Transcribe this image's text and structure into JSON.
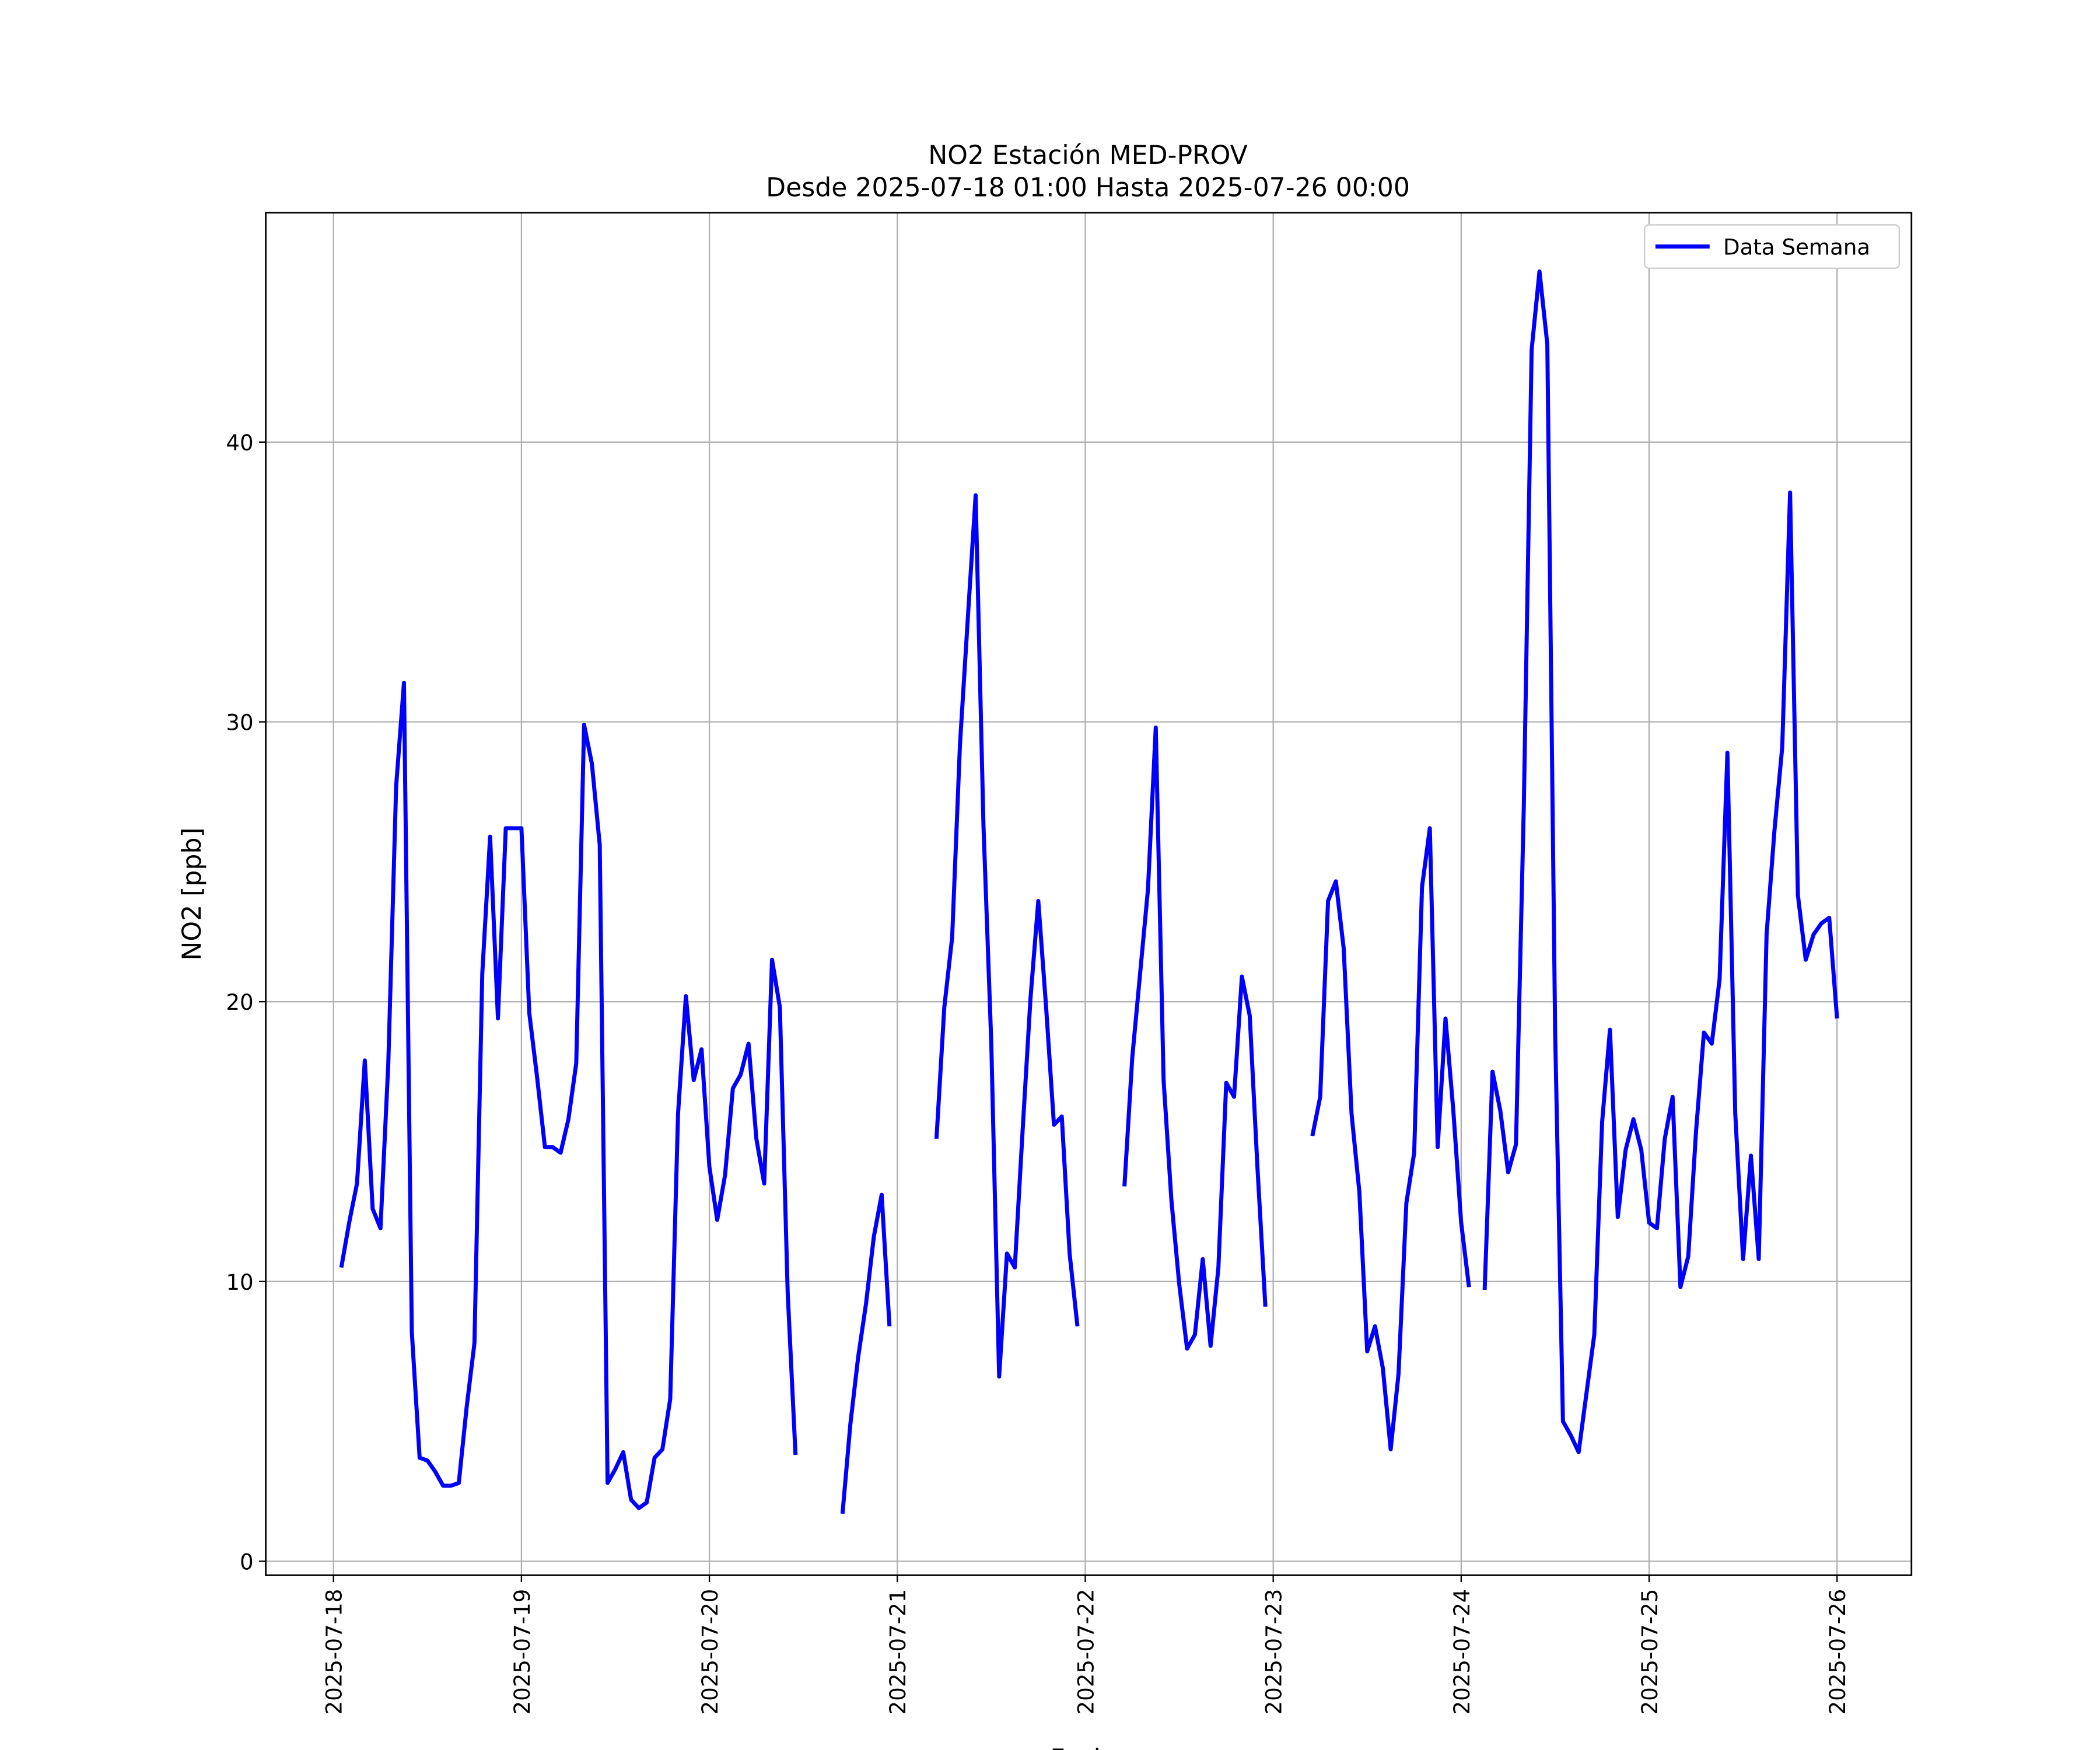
{
  "chart_data": {
    "type": "line",
    "title": "NO2 Estación MED-PROV",
    "subtitle": "Desde 2025-07-18 01:00 Hasta 2025-07-26 00:00",
    "xlabel": "Fecha",
    "ylabel": "NO2 [ppb]",
    "x": [
      "2025-07-18 01:00",
      "2025-07-18 02:00",
      "2025-07-18 03:00",
      "2025-07-18 04:00",
      "2025-07-18 05:00",
      "2025-07-18 06:00",
      "2025-07-18 07:00",
      "2025-07-18 08:00",
      "2025-07-18 09:00",
      "2025-07-18 10:00",
      "2025-07-18 11:00",
      "2025-07-18 12:00",
      "2025-07-18 13:00",
      "2025-07-18 14:00",
      "2025-07-18 15:00",
      "2025-07-18 16:00",
      "2025-07-18 17:00",
      "2025-07-18 18:00",
      "2025-07-18 19:00",
      "2025-07-18 20:00",
      "2025-07-18 21:00",
      "2025-07-18 22:00",
      "2025-07-18 23:00",
      "2025-07-19 00:00",
      "2025-07-19 01:00",
      "2025-07-19 02:00",
      "2025-07-19 03:00",
      "2025-07-19 04:00",
      "2025-07-19 05:00",
      "2025-07-19 06:00",
      "2025-07-19 07:00",
      "2025-07-19 08:00",
      "2025-07-19 09:00",
      "2025-07-19 10:00",
      "2025-07-19 11:00",
      "2025-07-19 12:00",
      "2025-07-19 13:00",
      "2025-07-19 14:00",
      "2025-07-19 15:00",
      "2025-07-19 16:00",
      "2025-07-19 17:00",
      "2025-07-19 18:00",
      "2025-07-19 19:00",
      "2025-07-19 20:00",
      "2025-07-19 21:00",
      "2025-07-19 22:00",
      "2025-07-19 23:00",
      "2025-07-20 00:00",
      "2025-07-20 01:00",
      "2025-07-20 02:00",
      "2025-07-20 03:00",
      "2025-07-20 04:00",
      "2025-07-20 05:00",
      "2025-07-20 06:00",
      "2025-07-20 07:00",
      "2025-07-20 08:00",
      "2025-07-20 09:00",
      "2025-07-20 10:00",
      "2025-07-20 11:00",
      "2025-07-20 12:00",
      "2025-07-20 13:00",
      "2025-07-20 14:00",
      "2025-07-20 15:00",
      "2025-07-20 16:00",
      "2025-07-20 17:00",
      "2025-07-20 18:00",
      "2025-07-20 19:00",
      "2025-07-20 20:00",
      "2025-07-20 21:00",
      "2025-07-20 22:00",
      "2025-07-20 23:00",
      "2025-07-21 00:00",
      "2025-07-21 01:00",
      "2025-07-21 02:00",
      "2025-07-21 03:00",
      "2025-07-21 04:00",
      "2025-07-21 05:00",
      "2025-07-21 06:00",
      "2025-07-21 07:00",
      "2025-07-21 08:00",
      "2025-07-21 09:00",
      "2025-07-21 10:00",
      "2025-07-21 11:00",
      "2025-07-21 12:00",
      "2025-07-21 13:00",
      "2025-07-21 14:00",
      "2025-07-21 15:00",
      "2025-07-21 16:00",
      "2025-07-21 17:00",
      "2025-07-21 18:00",
      "2025-07-21 19:00",
      "2025-07-21 20:00",
      "2025-07-21 21:00",
      "2025-07-21 22:00",
      "2025-07-21 23:00",
      "2025-07-22 00:00",
      "2025-07-22 01:00",
      "2025-07-22 02:00",
      "2025-07-22 03:00",
      "2025-07-22 04:00",
      "2025-07-22 05:00",
      "2025-07-22 06:00",
      "2025-07-22 07:00",
      "2025-07-22 08:00",
      "2025-07-22 09:00",
      "2025-07-22 10:00",
      "2025-07-22 11:00",
      "2025-07-22 12:00",
      "2025-07-22 13:00",
      "2025-07-22 14:00",
      "2025-07-22 15:00",
      "2025-07-22 16:00",
      "2025-07-22 17:00",
      "2025-07-22 18:00",
      "2025-07-22 19:00",
      "2025-07-22 20:00",
      "2025-07-22 21:00",
      "2025-07-22 22:00",
      "2025-07-22 23:00",
      "2025-07-23 00:00",
      "2025-07-23 01:00",
      "2025-07-23 02:00",
      "2025-07-23 03:00",
      "2025-07-23 04:00",
      "2025-07-23 05:00",
      "2025-07-23 06:00",
      "2025-07-23 07:00",
      "2025-07-23 08:00",
      "2025-07-23 09:00",
      "2025-07-23 10:00",
      "2025-07-23 11:00",
      "2025-07-23 12:00",
      "2025-07-23 13:00",
      "2025-07-23 14:00",
      "2025-07-23 15:00",
      "2025-07-23 16:00",
      "2025-07-23 17:00",
      "2025-07-23 18:00",
      "2025-07-23 19:00",
      "2025-07-23 20:00",
      "2025-07-23 21:00",
      "2025-07-23 22:00",
      "2025-07-23 23:00",
      "2025-07-24 00:00",
      "2025-07-24 01:00",
      "2025-07-24 02:00",
      "2025-07-24 03:00",
      "2025-07-24 04:00",
      "2025-07-24 05:00",
      "2025-07-24 06:00",
      "2025-07-24 07:00",
      "2025-07-24 08:00",
      "2025-07-24 09:00",
      "2025-07-24 10:00",
      "2025-07-24 11:00",
      "2025-07-24 12:00",
      "2025-07-24 13:00",
      "2025-07-24 14:00",
      "2025-07-24 15:00",
      "2025-07-24 16:00",
      "2025-07-24 17:00",
      "2025-07-24 18:00",
      "2025-07-24 19:00",
      "2025-07-24 20:00",
      "2025-07-24 21:00",
      "2025-07-24 22:00",
      "2025-07-24 23:00",
      "2025-07-25 00:00",
      "2025-07-25 01:00",
      "2025-07-25 02:00",
      "2025-07-25 03:00",
      "2025-07-25 04:00",
      "2025-07-25 05:00",
      "2025-07-25 06:00",
      "2025-07-25 07:00",
      "2025-07-25 08:00",
      "2025-07-25 09:00",
      "2025-07-25 10:00",
      "2025-07-25 11:00",
      "2025-07-25 12:00",
      "2025-07-25 13:00",
      "2025-07-25 14:00",
      "2025-07-25 15:00",
      "2025-07-25 16:00",
      "2025-07-25 17:00",
      "2025-07-25 18:00",
      "2025-07-25 19:00",
      "2025-07-25 20:00",
      "2025-07-25 21:00",
      "2025-07-25 22:00",
      "2025-07-25 23:00",
      "2025-07-26 00:00"
    ],
    "series": [
      {
        "name": "Data Semana",
        "color": "#0000ff",
        "values": [
          10.5,
          12.1,
          13.5,
          17.9,
          12.6,
          11.9,
          17.8,
          27.7,
          31.4,
          8.2,
          3.7,
          3.6,
          3.2,
          2.7,
          2.7,
          2.8,
          5.5,
          7.8,
          21.0,
          25.9,
          19.4,
          26.2,
          26.2,
          26.2,
          19.6,
          17.3,
          14.8,
          14.8,
          14.6,
          15.8,
          17.8,
          29.9,
          28.5,
          25.6,
          2.8,
          3.3,
          3.9,
          2.2,
          1.9,
          2.1,
          3.7,
          4.0,
          5.8,
          16.0,
          20.2,
          17.2,
          18.3,
          14.1,
          12.2,
          13.8,
          16.9,
          17.4,
          18.5,
          15.1,
          13.5,
          21.5,
          19.8,
          9.6,
          3.8,
          null,
          null,
          null,
          null,
          null,
          1.7,
          4.9,
          7.3,
          9.2,
          11.6,
          13.1,
          8.4,
          null,
          null,
          null,
          null,
          null,
          15.1,
          19.8,
          22.3,
          29.2,
          33.7,
          38.1,
          26.3,
          18.5,
          6.6,
          11.0,
          10.5,
          15.4,
          20.1,
          23.6,
          19.8,
          15.6,
          15.9,
          11.0,
          8.4,
          null,
          null,
          null,
          null,
          null,
          13.4,
          18.0,
          21.0,
          24.0,
          29.8,
          17.2,
          12.9,
          9.9,
          7.6,
          8.1,
          10.8,
          7.7,
          10.5,
          17.1,
          16.6,
          20.9,
          19.5,
          14.0,
          9.1,
          null,
          null,
          null,
          null,
          null,
          15.2,
          16.6,
          23.6,
          24.3,
          21.9,
          16.0,
          13.2,
          7.5,
          8.4,
          6.9,
          4.0,
          6.7,
          12.8,
          14.6,
          24.1,
          26.2,
          14.8,
          19.4,
          16.1,
          12.1,
          9.8,
          null,
          9.7,
          17.5,
          16.1,
          13.9,
          14.9,
          27.0,
          43.3,
          46.1,
          43.5,
          18.9,
          5.0,
          4.5,
          3.9,
          6.0,
          8.1,
          15.7,
          19.0,
          12.3,
          14.7,
          15.8,
          14.7,
          12.1,
          11.9,
          15.1,
          16.6,
          9.8,
          10.9,
          15.4,
          18.9,
          18.5,
          20.8,
          28.9,
          16.0,
          10.8,
          14.5,
          10.8,
          22.4,
          26.1,
          29.1,
          38.2,
          23.8,
          21.5,
          22.4,
          22.8,
          23.0,
          19.4
        ]
      }
    ],
    "xlim": [
      "2025-07-17 15:21",
      "2025-07-26 09:30"
    ],
    "xticks": [
      "2025-07-18",
      "2025-07-19",
      "2025-07-20",
      "2025-07-21",
      "2025-07-22",
      "2025-07-23",
      "2025-07-24",
      "2025-07-25",
      "2025-07-26"
    ],
    "ylim": [
      -0.5,
      48.2
    ],
    "yticks": [
      0,
      10,
      20,
      30,
      40
    ],
    "grid": true,
    "legend": "upper right"
  }
}
